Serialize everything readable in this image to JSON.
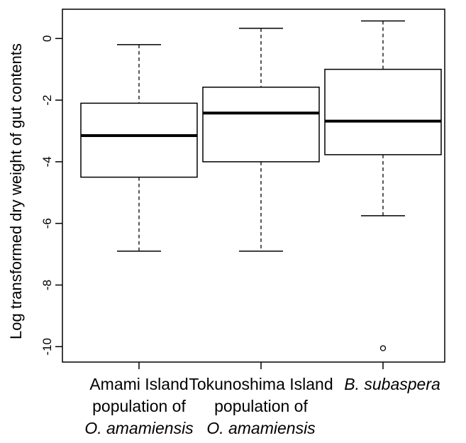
{
  "chart_data": {
    "type": "boxplot",
    "title": "",
    "xlabel": "",
    "ylabel": "Log transformed dry weight of gut contents",
    "ylim": [
      -10.5,
      0.95
    ],
    "yticks": [
      0,
      -2,
      -4,
      -6,
      -8,
      -10
    ],
    "ytick_labels": [
      "0",
      "-2",
      "-4",
      "-6",
      "-8",
      "-10"
    ],
    "grid": false,
    "legend": "none",
    "categories": [
      {
        "lines": [
          {
            "text": "Amami Island",
            "italic": false
          },
          {
            "text": "population of",
            "italic": false
          },
          {
            "text": "O. amamiensis",
            "italic": true
          }
        ]
      },
      {
        "lines": [
          {
            "text": "Tokunoshima Island",
            "italic": false
          },
          {
            "text": "population of",
            "italic": false
          },
          {
            "text": "O. amamiensis",
            "italic": true
          }
        ]
      },
      {
        "lines": [
          {
            "text": "B. subaspera",
            "italic": true
          }
        ]
      }
    ],
    "boxes": [
      {
        "whisker_low": -6.9,
        "q1": -4.5,
        "median": -3.15,
        "q3": -2.1,
        "whisker_high": -0.2,
        "outliers": []
      },
      {
        "whisker_low": -6.9,
        "q1": -4.0,
        "median": -2.42,
        "q3": -1.58,
        "whisker_high": 0.33,
        "outliers": []
      },
      {
        "whisker_low": -5.75,
        "q1": -3.77,
        "median": -2.68,
        "q3": -1.0,
        "whisker_high": 0.57,
        "outliers": [
          -10.05
        ]
      }
    ]
  }
}
